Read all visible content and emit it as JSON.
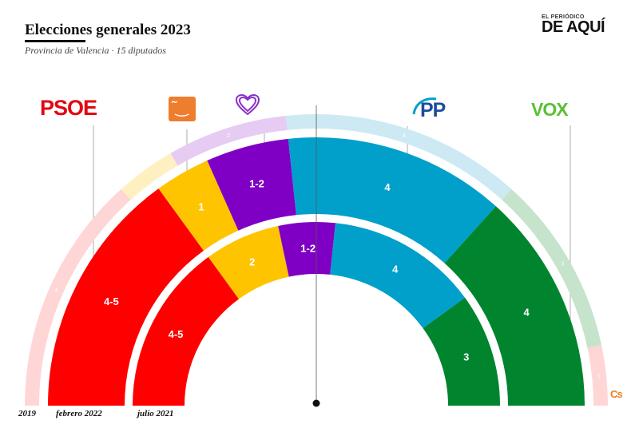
{
  "header": {
    "title": "Elecciones generales 2023",
    "subtitle": "Provincia de Valencia · 15 diputados"
  },
  "brand": {
    "top": "EL PERIÓDICO",
    "main": "DE AQUÍ"
  },
  "logos": {
    "psoe": "PSOE",
    "pp": "PP",
    "vox": "VOX",
    "cs": "Cs",
    "compromis": "˜‿"
  },
  "colors": {
    "psoe": "#ff0000",
    "compromis": "#ffc400",
    "sumar": "#7f00c4",
    "pp": "#00a0cb",
    "vox": "#00842e",
    "cs": "#f07c1b",
    "psoe_2019": "#ffd6d6",
    "compromis_2019": "#fff0c2",
    "sumar_2019": "#e6ccf2",
    "pp_2019": "#cdeaf4",
    "vox_2019": "#c6e3cc",
    "cs_2019": "#ffd6d6"
  },
  "chart_data": {
    "type": "semicircle-parliament",
    "total_seats": 15,
    "rings": [
      {
        "name": "2019",
        "segments": [
          {
            "party": "psoe",
            "seats": 4,
            "label": "4"
          },
          {
            "party": "compromis",
            "seats": 1,
            "label": ""
          },
          {
            "party": "sumar",
            "seats": 2,
            "label": "2"
          },
          {
            "party": "pp",
            "seats": 4,
            "label": "4"
          },
          {
            "party": "vox",
            "seats": 3,
            "label": "3"
          },
          {
            "party": "cs",
            "seats": 1,
            "label": "1"
          }
        ]
      },
      {
        "name": "febrero 2022",
        "segments": [
          {
            "party": "psoe",
            "seats": 4.5,
            "label": "4-5"
          },
          {
            "party": "compromis",
            "seats": 1,
            "label": "1"
          },
          {
            "party": "sumar",
            "seats": 1.5,
            "label": "1-2"
          },
          {
            "party": "pp",
            "seats": 4,
            "label": "4"
          },
          {
            "party": "vox",
            "seats": 4,
            "label": "4"
          }
        ]
      },
      {
        "name": "julio 2021",
        "segments": [
          {
            "party": "psoe",
            "seats": 4.5,
            "label": "4-5"
          },
          {
            "party": "compromis",
            "seats": 2,
            "label": "2"
          },
          {
            "party": "sumar",
            "seats": 1.5,
            "label": "1-2"
          },
          {
            "party": "pp",
            "seats": 4,
            "label": "4"
          },
          {
            "party": "vox",
            "seats": 3,
            "label": "3"
          }
        ]
      }
    ]
  }
}
